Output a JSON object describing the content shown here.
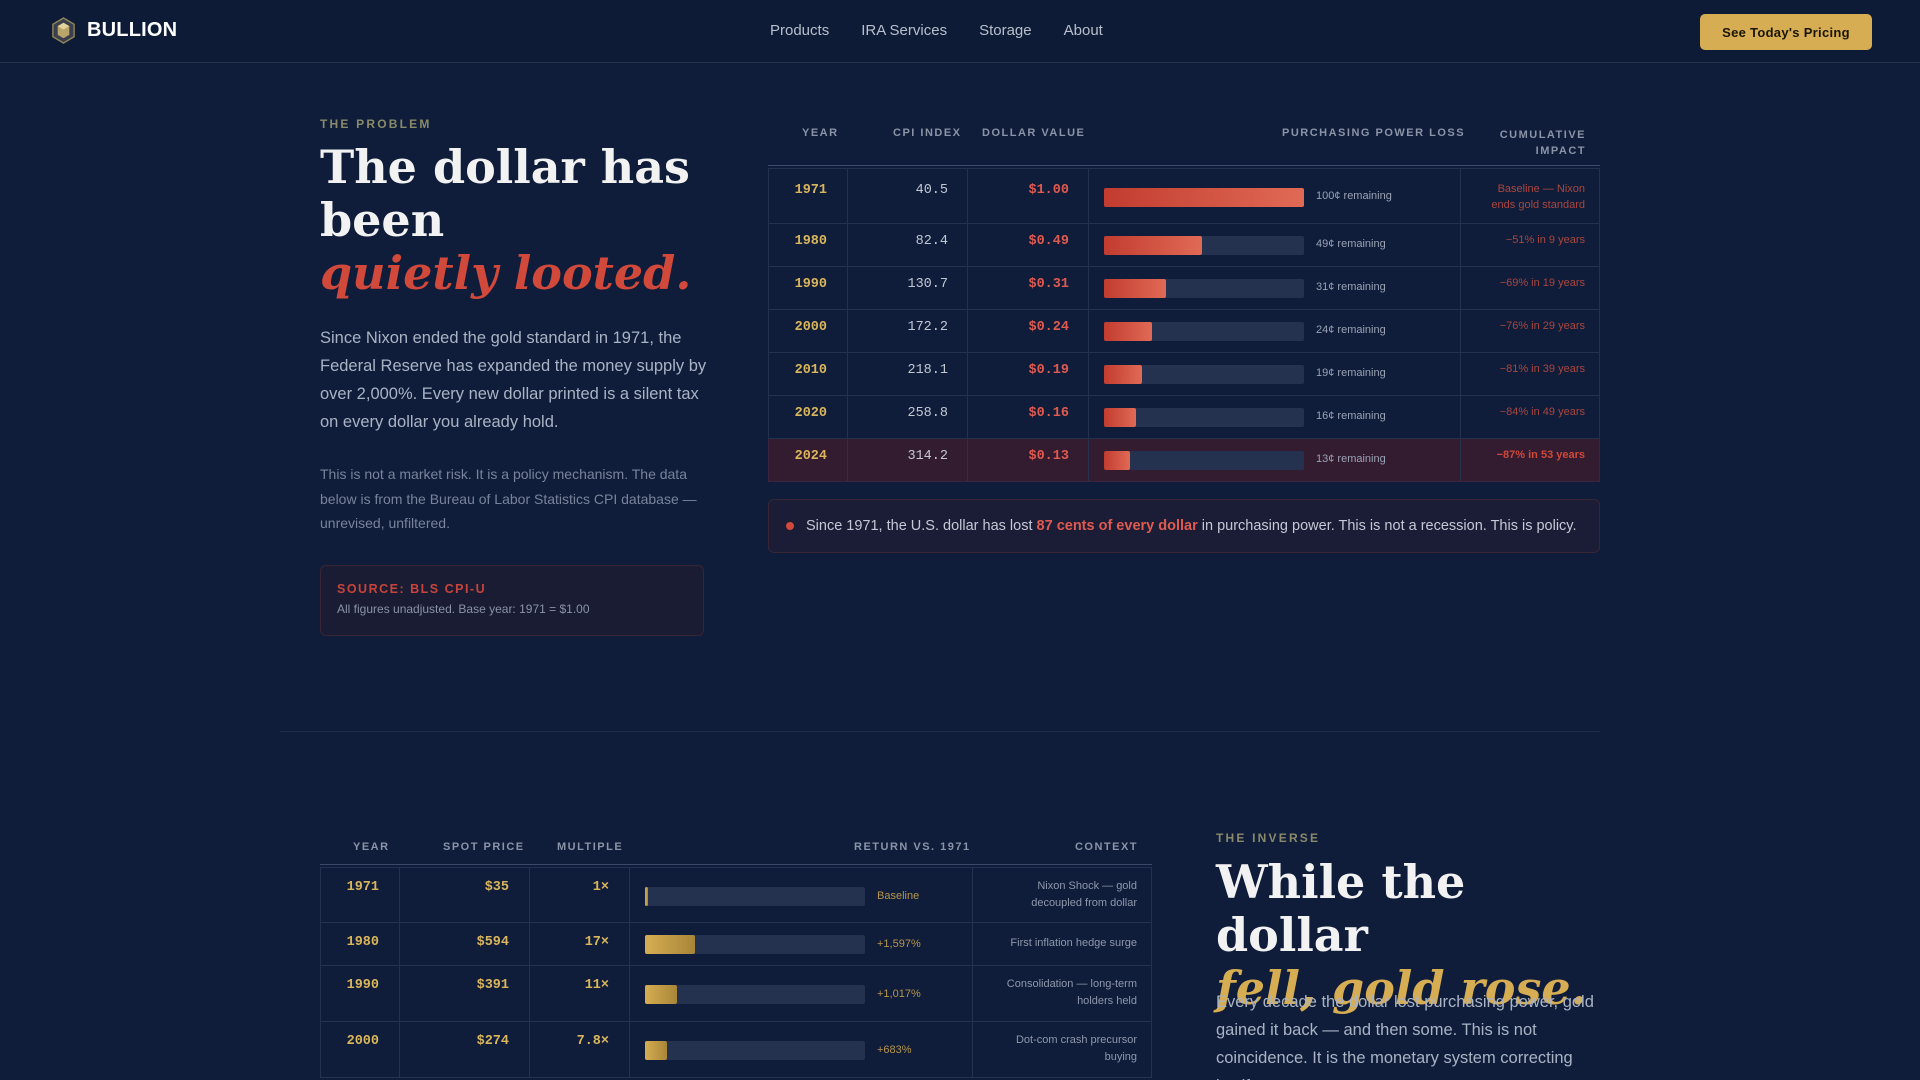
{
  "nav": {
    "brand": "BULLION",
    "links": [
      "Products",
      "IRA Services",
      "Storage",
      "About"
    ],
    "cta": "See Today's Pricing"
  },
  "problem": {
    "eyebrow": "THE PROBLEM",
    "headline_line1": "The dollar has been",
    "headline_accent": "quietly looted.",
    "lead": "Since Nixon ended the gold standard in 1971, the Federal Reserve has expanded the money supply by over 2,000%. Every new dollar printed is a silent tax on every dollar you already hold.",
    "sub": "This is not a market risk. It is a policy mechanism. The data below is from the Bureau of Labor Statistics CPI database — unrevised, unfiltered.",
    "source_title": "SOURCE: BLS CPI-U",
    "source_note": "All figures unadjusted. Base year: 1971 = $1.00"
  },
  "dollar_table": {
    "headers": [
      "YEAR",
      "CPI INDEX",
      "DOLLAR VALUE",
      "PURCHASING POWER LOSS",
      "CUMULATIVE IMPACT"
    ],
    "rows": [
      {
        "year": "1971",
        "cpi": "40.5",
        "value": "$1.00",
        "remaining_pct": 100,
        "remaining": "100¢ remaining",
        "impact": "Baseline — Nixon ends gold standard"
      },
      {
        "year": "1980",
        "cpi": "82.4",
        "value": "$0.49",
        "remaining_pct": 49,
        "remaining": "49¢ remaining",
        "impact": "−51% in 9 years"
      },
      {
        "year": "1990",
        "cpi": "130.7",
        "value": "$0.31",
        "remaining_pct": 31,
        "remaining": "31¢ remaining",
        "impact": "−69% in 19 years"
      },
      {
        "year": "2000",
        "cpi": "172.2",
        "value": "$0.24",
        "remaining_pct": 24,
        "remaining": "24¢ remaining",
        "impact": "−76% in 29 years"
      },
      {
        "year": "2010",
        "cpi": "218.1",
        "value": "$0.19",
        "remaining_pct": 19,
        "remaining": "19¢ remaining",
        "impact": "−81% in 39 years"
      },
      {
        "year": "2020",
        "cpi": "258.8",
        "value": "$0.16",
        "remaining_pct": 16,
        "remaining": "16¢ remaining",
        "impact": "−84% in 49 years"
      },
      {
        "year": "2024",
        "cpi": "314.2",
        "value": "$0.13",
        "remaining_pct": 13,
        "remaining": "13¢ remaining",
        "impact": "−87% in 53 years"
      }
    ]
  },
  "callout": {
    "before": "Since 1971, the U.S. dollar has lost",
    "highlight": "87 cents of every dollar",
    "after": "in purchasing power. This is not a recession. This is policy."
  },
  "gold_table": {
    "headers": [
      "YEAR",
      "SPOT PRICE",
      "MULTIPLE",
      "RETURN VS. 1971",
      "CONTEXT"
    ],
    "rows": [
      {
        "year": "1971",
        "price": "$35",
        "multiple": "1×",
        "return_pct": 0,
        "return": "Baseline",
        "context": "Nixon Shock — gold decoupled from dollar"
      },
      {
        "year": "1980",
        "price": "$594",
        "multiple": "17×",
        "return_pct": 1597,
        "return": "+1,597%",
        "context": "First inflation hedge surge"
      },
      {
        "year": "1990",
        "price": "$391",
        "multiple": "11×",
        "return_pct": 1017,
        "return": "+1,017%",
        "context": "Consolidation — long-term holders held"
      },
      {
        "year": "2000",
        "price": "$274",
        "multiple": "7.8×",
        "return_pct": 683,
        "return": "+683%",
        "context": "Dot-com crash precursor buying"
      }
    ]
  },
  "inverse": {
    "eyebrow": "THE INVERSE",
    "headline_line1": "While the dollar",
    "headline_accent": "fell, gold rose.",
    "lead": "Every decade the dollar lost purchasing power, gold gained it back — and then some. This is not coincidence. It is the monetary system correcting itself"
  },
  "colors": {
    "gold": "#d6ad52",
    "red": "#d0493b",
    "bg": "#0f1d3a"
  }
}
